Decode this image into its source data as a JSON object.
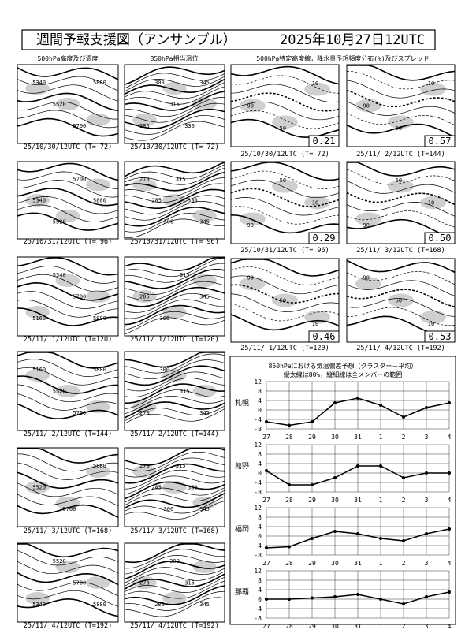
{
  "header": {
    "title": "週間予報支援図（アンサンブル）",
    "date": "2025年10月27日12UTC"
  },
  "column_titles": [
    "500hPa高度及び渦度",
    "850hPa相当温位",
    "500hPa特定高度線，降水量予想頻度分布(%)及びスプレッド"
  ],
  "height_maps": [
    {
      "caption": "25/10/30/12UTC (T= 72)",
      "labels": [
        "5340",
        "5520",
        "5700",
        "5880"
      ]
    },
    {
      "caption": "25/10/31/12UTC (T= 96)",
      "labels": [
        "5340",
        "5520",
        "5700",
        "5880"
      ]
    },
    {
      "caption": "25/11/ 1/12UTC (T=120)",
      "labels": [
        "5160",
        "5340",
        "5700",
        "5880"
      ]
    },
    {
      "caption": "25/11/ 2/12UTC (T=144)",
      "labels": [
        "5160",
        "5520",
        "5700",
        "5880"
      ]
    },
    {
      "caption": "25/11/ 3/12UTC (T=168)",
      "labels": [
        "5520",
        "5700",
        "5880"
      ]
    },
    {
      "caption": "25/11/ 4/12UTC (T=192)",
      "labels": [
        "5340",
        "5520",
        "5700",
        "5880"
      ]
    }
  ],
  "theta_maps": [
    {
      "caption": "25/10/30/12UTC (T= 72)",
      "labels": [
        "285",
        "300",
        "315",
        "330",
        "345"
      ]
    },
    {
      "caption": "25/10/31/12UTC (T= 96)",
      "labels": [
        "270",
        "285",
        "300",
        "315",
        "330",
        "345"
      ]
    },
    {
      "caption": "25/11/ 1/12UTC (T=120)",
      "labels": [
        "285",
        "300",
        "315",
        "345"
      ]
    },
    {
      "caption": "25/11/ 2/12UTC (T=144)",
      "labels": [
        "270",
        "300",
        "315",
        "345"
      ]
    },
    {
      "caption": "25/11/ 3/12UTC (T=168)",
      "labels": [
        "270",
        "285",
        "300",
        "315",
        "330",
        "345"
      ]
    },
    {
      "caption": "25/11/ 4/12UTC (T=192)",
      "labels": [
        "270",
        "285",
        "300",
        "315",
        "345"
      ]
    }
  ],
  "precip_maps": [
    {
      "caption": "25/10/30/12UTC (T= 72)",
      "spread": "0.21",
      "labels": [
        "90",
        "50",
        "10"
      ]
    },
    {
      "caption": "25/10/31/12UTC (T= 96)",
      "spread": "0.29",
      "labels": [
        "90",
        "50",
        "10"
      ]
    },
    {
      "caption": "25/11/ 1/12UTC (T=120)",
      "spread": "0.46",
      "labels": [
        "90",
        "50",
        "10"
      ]
    },
    {
      "caption": "25/11/ 2/12UTC (T=144)",
      "spread": "0.57",
      "labels": [
        "90",
        "50",
        "10"
      ]
    },
    {
      "caption": "25/11/ 3/12UTC (T=168)",
      "spread": "0.50",
      "labels": [
        "90",
        "50",
        "10"
      ]
    },
    {
      "caption": "25/11/ 4/12UTC (T=192)",
      "spread": "0.53",
      "labels": [
        "90",
        "50",
        "10"
      ]
    }
  ],
  "temp_panel": {
    "title": "850hPaにおける気温偏差予想（クラスター－平均）",
    "note": "縦太線は80%，縦細線は全メンバーの範囲"
  },
  "chart_data": [
    {
      "type": "line",
      "title": "札幌",
      "categories": [
        "27",
        "28",
        "29",
        "30",
        "31",
        "1",
        "2",
        "3",
        "4"
      ],
      "ylim": [
        -8,
        12
      ],
      "yticks": [
        12,
        8,
        4,
        0,
        -4,
        -8
      ],
      "series": [
        {
          "color": "#000000",
          "values": [
            -5,
            -6.5,
            -5,
            3,
            5,
            2,
            -3,
            1,
            3
          ]
        }
      ]
    },
    {
      "type": "line",
      "title": "館野",
      "categories": [
        "27",
        "28",
        "29",
        "30",
        "31",
        "1",
        "2",
        "3",
        "4"
      ],
      "ylim": [
        -8,
        12
      ],
      "yticks": [
        12,
        8,
        4,
        0,
        -4,
        -8
      ],
      "series": [
        {
          "color": "#000000",
          "values": [
            1,
            -5,
            -5,
            -2,
            3,
            3,
            -2,
            0,
            0
          ]
        }
      ]
    },
    {
      "type": "line",
      "title": "福岡",
      "categories": [
        "27",
        "28",
        "29",
        "30",
        "31",
        "1",
        "2",
        "3",
        "4"
      ],
      "ylim": [
        -8,
        12
      ],
      "yticks": [
        12,
        8,
        4,
        0,
        -4,
        -8
      ],
      "series": [
        {
          "color": "#000000",
          "values": [
            -5,
            -4.5,
            -1,
            2,
            1,
            -1,
            -2,
            1,
            3
          ]
        }
      ]
    },
    {
      "type": "line",
      "title": "那覇",
      "categories": [
        "27",
        "28",
        "29",
        "30",
        "31",
        "1",
        "2",
        "3",
        "4"
      ],
      "ylim": [
        -8,
        12
      ],
      "yticks": [
        12,
        8,
        4,
        0,
        -4,
        -8
      ],
      "series": [
        {
          "color": "#000000",
          "values": [
            0,
            0,
            0.5,
            1,
            2,
            0,
            -2,
            1,
            3
          ]
        }
      ]
    }
  ]
}
